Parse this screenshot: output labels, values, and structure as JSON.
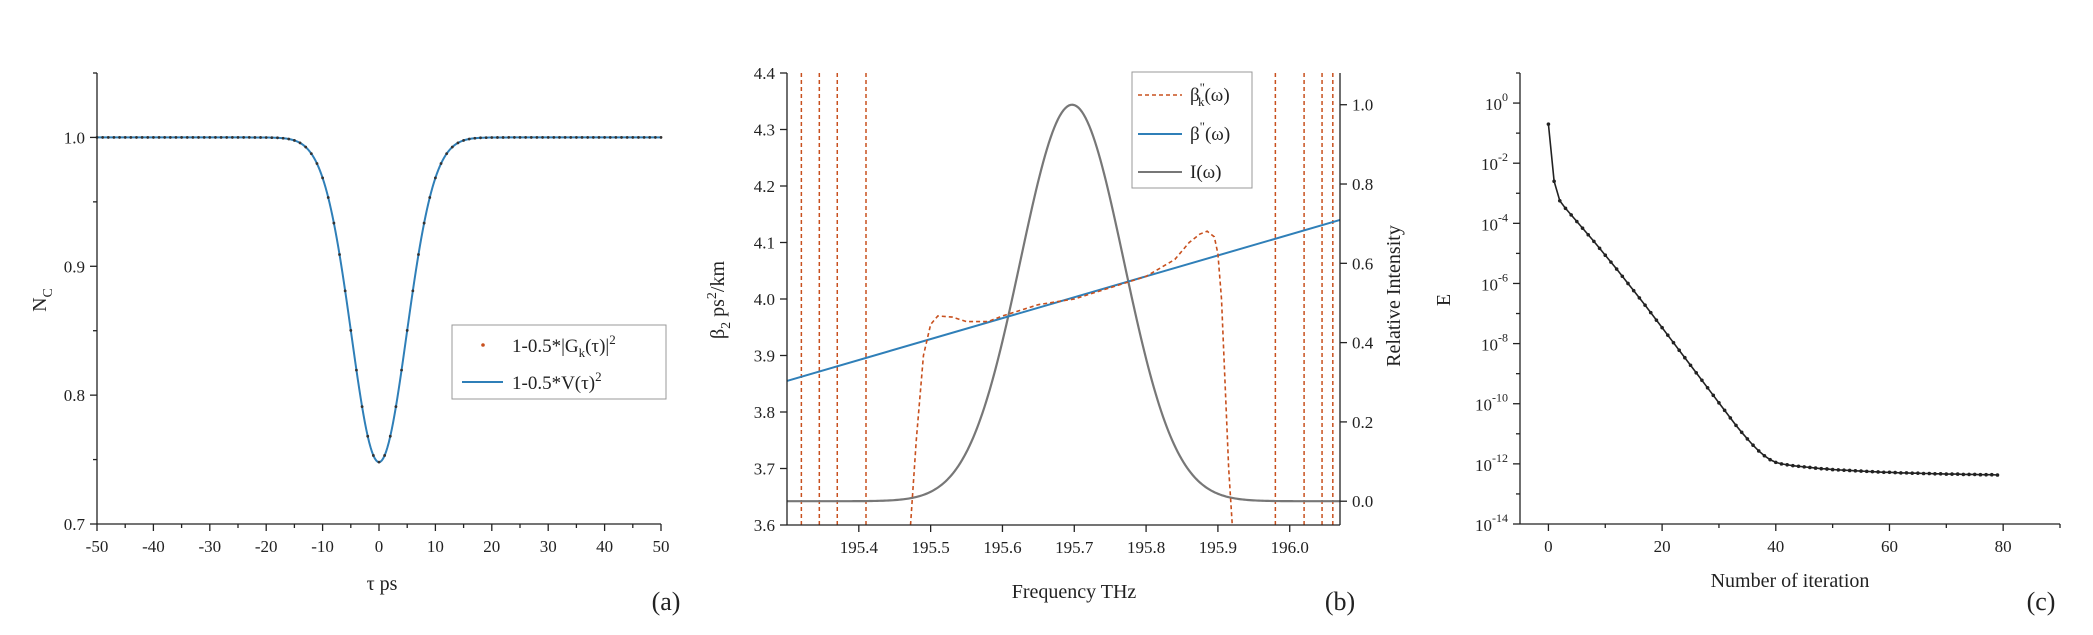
{
  "chart_data": [
    {
      "id": "a",
      "type": "line",
      "panel_label": "(a)",
      "xlabel": "τ ps",
      "ylabel": "N",
      "ylabel_sub": "C",
      "xlim": [
        -50,
        50
      ],
      "ylim": [
        0.7,
        1.05
      ],
      "xticks": [
        "-50",
        "-40",
        "-30",
        "-20",
        "-10",
        "0",
        "10",
        "20",
        "30",
        "40",
        "50"
      ],
      "yticks": [
        "0.7",
        "0.8",
        "0.9",
        "1.0"
      ],
      "legend": [
        {
          "label": "1-0.5*|G",
          "sub": "k",
          "rest": "(τ)|",
          "sup": "2",
          "color": "#c8501e",
          "style": "dots"
        },
        {
          "label": "1-0.5*V(τ)",
          "sub": "",
          "rest": "",
          "sup": "2",
          "color": "#2f7fb8",
          "style": "line"
        }
      ],
      "series": [
        {
          "name": "1-0.5*|Gk(τ)|^2",
          "model": "gaussian_dip",
          "baseline": 1.0,
          "depth": 0.252,
          "center": 0,
          "sigma": 4.9,
          "x_range": [
            -50,
            50
          ],
          "points": 101
        },
        {
          "name": "1-0.5*V(τ)^2",
          "model": "gaussian_dip",
          "baseline": 1.0,
          "depth": 0.252,
          "center": 0,
          "sigma": 4.9,
          "x_range": [
            -50,
            50
          ],
          "points": 401
        }
      ]
    },
    {
      "id": "b",
      "type": "line",
      "panel_label": "(b)",
      "xlabel": "Frequency THz",
      "ylabel": "β",
      "ylabel_sub": "2",
      "ylabel_rest": " ps",
      "ylabel_sup": "2",
      "ylabel_end": "/km",
      "ylabel_right": "Relative Intensity",
      "xlim": [
        195.3,
        196.07
      ],
      "ylim": [
        3.6,
        4.4
      ],
      "ylim_right": [
        -0.06,
        1.08
      ],
      "xticks": [
        "195.4",
        "195.5",
        "195.6",
        "195.7",
        "195.8",
        "195.9",
        "196.0"
      ],
      "yticks": [
        "3.6",
        "3.7",
        "3.8",
        "3.9",
        "4.0",
        "4.1",
        "4.2",
        "4.3",
        "4.4"
      ],
      "yticks_right": [
        "0.0",
        "0.2",
        "0.4",
        "0.6",
        "0.8",
        "1.0"
      ],
      "legend": [
        {
          "label": "β",
          "sup": "\"",
          "sub": "k",
          "rest": "(ω)",
          "color": "#c8501e",
          "style": "dashed"
        },
        {
          "label": "β",
          "sup": "\"",
          "sub": "",
          "rest": "(ω)",
          "color": "#2f7fb8",
          "style": "line"
        },
        {
          "label": "I(ω)",
          "sup": "",
          "sub": "",
          "rest": "",
          "color": "#777777",
          "style": "line"
        }
      ],
      "beta_line": {
        "x": [
          195.3,
          196.07
        ],
        "y": [
          3.855,
          4.14
        ]
      },
      "intensity": {
        "center": 195.697,
        "sigma": 0.072,
        "peak": 1.0
      },
      "beta_k_vlines": [
        195.32,
        195.345,
        195.37,
        195.41,
        195.98,
        196.02,
        196.045,
        196.06
      ],
      "beta_k_curve": {
        "x": [
          195.472,
          195.48,
          195.49,
          195.5,
          195.51,
          195.53,
          195.55,
          195.58,
          195.6,
          195.65,
          195.7,
          195.75,
          195.8,
          195.84,
          195.86,
          195.875,
          195.885,
          195.895,
          195.9,
          195.905,
          195.91,
          195.915,
          195.92
        ],
        "y": [
          3.6,
          3.75,
          3.9,
          3.955,
          3.97,
          3.968,
          3.96,
          3.96,
          3.97,
          3.99,
          4.0,
          4.02,
          4.04,
          4.07,
          4.1,
          4.115,
          4.12,
          4.11,
          4.08,
          4.0,
          3.85,
          3.7,
          3.6
        ]
      }
    },
    {
      "id": "c",
      "type": "line",
      "panel_label": "(c)",
      "xlabel": "Number of iteration",
      "ylabel": "E",
      "xlim": [
        -5,
        90
      ],
      "ylim_log": [
        -14,
        1
      ],
      "xticks": [
        "0",
        "20",
        "40",
        "60",
        "80"
      ],
      "yticks_exp": [
        "0",
        "-2",
        "-4",
        "-6",
        "-8",
        "-10",
        "-12",
        "-14"
      ],
      "ytick_base": "10",
      "series": [
        {
          "name": "E",
          "x_range": [
            0,
            79
          ],
          "log10_values": [
            -0.7,
            -2.6,
            -3.25,
            -3.5,
            -3.72,
            -3.94,
            -4.16,
            -4.38,
            -4.6,
            -4.83,
            -5.06,
            -5.29,
            -5.52,
            -5.76,
            -6.0,
            -6.24,
            -6.48,
            -6.72,
            -6.97,
            -7.22,
            -7.47,
            -7.72,
            -7.97,
            -8.22,
            -8.47,
            -8.72,
            -8.97,
            -9.22,
            -9.47,
            -9.72,
            -9.97,
            -10.22,
            -10.47,
            -10.72,
            -10.95,
            -11.17,
            -11.38,
            -11.57,
            -11.73,
            -11.86,
            -11.95,
            -12.0,
            -12.03,
            -12.06,
            -12.08,
            -12.1,
            -12.12,
            -12.14,
            -12.16,
            -12.17,
            -12.19,
            -12.2,
            -12.21,
            -12.22,
            -12.23,
            -12.24,
            -12.25,
            -12.26,
            -12.27,
            -12.28,
            -12.28,
            -12.29,
            -12.3,
            -12.3,
            -12.31,
            -12.31,
            -12.32,
            -12.32,
            -12.33,
            -12.33,
            -12.34,
            -12.34,
            -12.34,
            -12.35,
            -12.35,
            -12.35,
            -12.36,
            -12.36,
            -12.36,
            -12.37
          ]
        }
      ]
    }
  ]
}
